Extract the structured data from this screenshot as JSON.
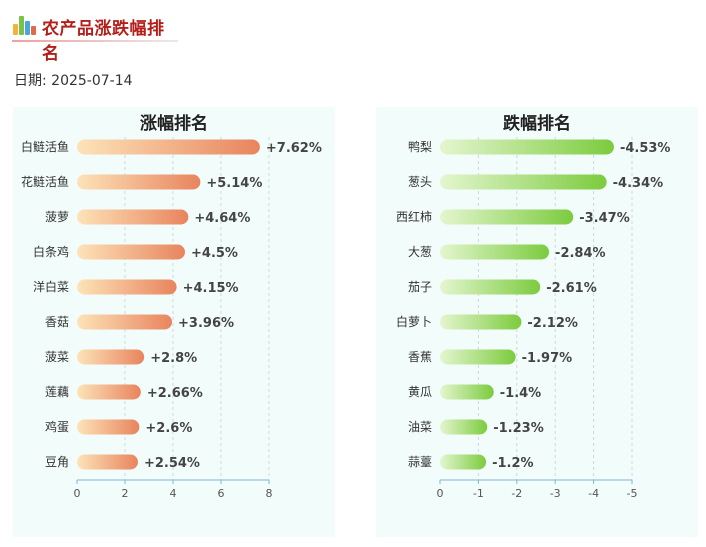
{
  "header": {
    "title": "农产品涨跌幅排名"
  },
  "date": {
    "label": "日期:",
    "value": "2025-07-14"
  },
  "chart_data": [
    {
      "type": "bar",
      "orientation": "horizontal",
      "title": "涨幅排名",
      "categories": [
        "白鲢活鱼",
        "花鲢活鱼",
        "菠萝",
        "白条鸡",
        "洋白菜",
        "香菇",
        "菠菜",
        "莲藕",
        "鸡蛋",
        "豆角"
      ],
      "values": [
        7.62,
        5.14,
        4.64,
        4.5,
        4.15,
        3.96,
        2.8,
        2.66,
        2.6,
        2.54
      ],
      "labels": [
        "+7.62%",
        "+5.14%",
        "+4.64%",
        "+4.5%",
        "+4.15%",
        "+3.96%",
        "+2.8%",
        "+2.66%",
        "+2.6%",
        "+2.54%"
      ],
      "xticks": [
        "0",
        "2",
        "4",
        "6",
        "8"
      ],
      "xlim": [
        0,
        8
      ],
      "colors": {
        "start": "#fde3b8",
        "end": "#e8845e"
      },
      "grid": true
    },
    {
      "type": "bar",
      "orientation": "horizontal",
      "title": "跌幅排名",
      "categories": [
        "鸭梨",
        "葱头",
        "西红柿",
        "大葱",
        "茄子",
        "白萝卜",
        "香蕉",
        "黄瓜",
        "油菜",
        "蒜薹"
      ],
      "values": [
        -4.53,
        -4.34,
        -3.47,
        -2.84,
        -2.61,
        -2.12,
        -1.97,
        -1.4,
        -1.23,
        -1.2
      ],
      "labels": [
        "-4.53%",
        "-4.34%",
        "-3.47%",
        "-2.84%",
        "-2.61%",
        "-2.12%",
        "-1.97%",
        "-1.4%",
        "-1.23%",
        "-1.2%"
      ],
      "xticks": [
        "0",
        "-1",
        "-2",
        "-3",
        "-4",
        "-5"
      ],
      "xlim": [
        0,
        -5
      ],
      "colors": {
        "start": "#e4f6cf",
        "end": "#7ccb3e"
      },
      "grid": true
    }
  ]
}
